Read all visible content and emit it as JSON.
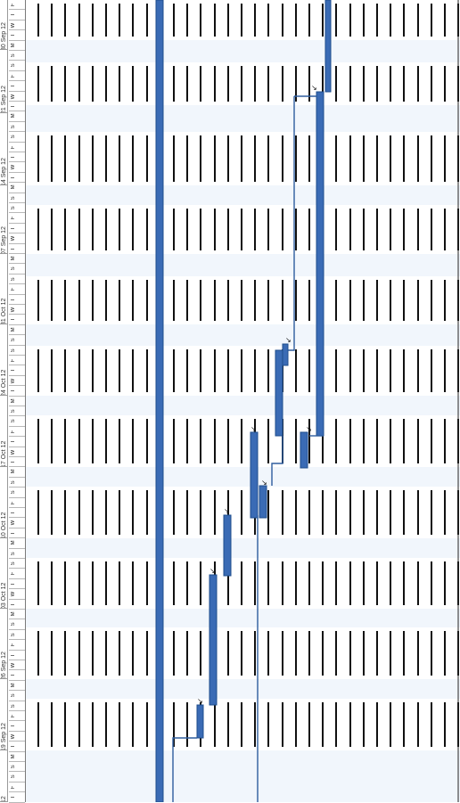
{
  "timescale": {
    "weeks": [
      {
        "label": "30 Sep 12"
      },
      {
        "label": "21 Sep 12"
      },
      {
        "label": "14 Sep 12"
      },
      {
        "label": "07 Sep 12"
      },
      {
        "label": "31 Oct 12"
      },
      {
        "label": "24 Oct 12"
      },
      {
        "label": "17 Oct 12"
      },
      {
        "label": "10 Oct 12"
      },
      {
        "label": "03 Oct 12"
      },
      {
        "label": "26 Sep 12"
      },
      {
        "label": "19 Sep 12"
      },
      {
        "label": "12 Sep 12"
      },
      {
        "label": "05 Sep 12"
      },
      {
        "label": "12"
      }
    ],
    "day_letters": [
      "F",
      "T",
      "W",
      "T",
      "M",
      "S",
      "S"
    ]
  },
  "colors": {
    "bar": "#3a6bb5",
    "bar_edge": "#1f4e8c",
    "link": "#2e5d9e",
    "band": "#f1f6fc",
    "grid": "#111111"
  },
  "milestone_marker": "↘"
}
